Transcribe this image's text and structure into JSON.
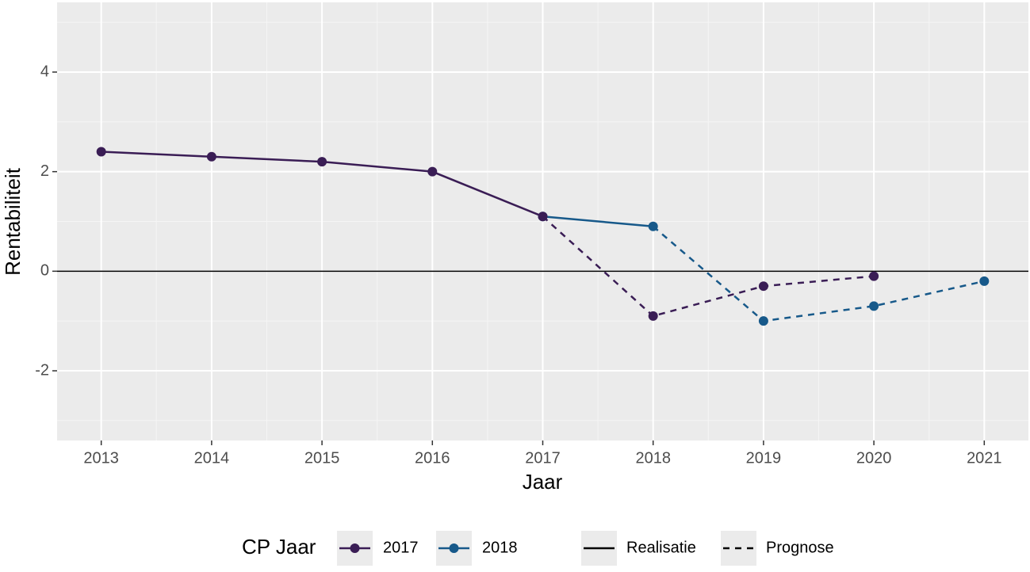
{
  "chart_data": {
    "type": "line",
    "x_label": "Jaar",
    "y_label": "Rentabiliteit",
    "xlim": [
      2012.6,
      2021.4
    ],
    "xticks": [
      2013,
      2014,
      2015,
      2016,
      2017,
      2018,
      2019,
      2020,
      2021
    ],
    "ylim": [
      -3.4,
      5.4
    ],
    "yticks": [
      -2,
      0,
      2,
      4
    ],
    "grid": true,
    "reference_line": 0,
    "legend_title": "CP Jaar",
    "legend_position": "bottom",
    "linetype_labels": [
      "Realisatie",
      "Prognose"
    ],
    "series": [
      {
        "name": "2017",
        "color": "#3a1d55",
        "prognosis_from": 2017,
        "x": [
          2013,
          2014,
          2015,
          2016,
          2017,
          2018,
          2019,
          2020
        ],
        "values": [
          2.4,
          2.3,
          2.2,
          2.0,
          1.1,
          -0.9,
          -0.3,
          -0.1
        ]
      },
      {
        "name": "2018",
        "color": "#17598a",
        "prognosis_from": 2018,
        "x": [
          2017,
          2018,
          2019,
          2020,
          2021
        ],
        "values": [
          1.1,
          0.9,
          -1.0,
          -0.7,
          -0.2
        ]
      }
    ]
  }
}
